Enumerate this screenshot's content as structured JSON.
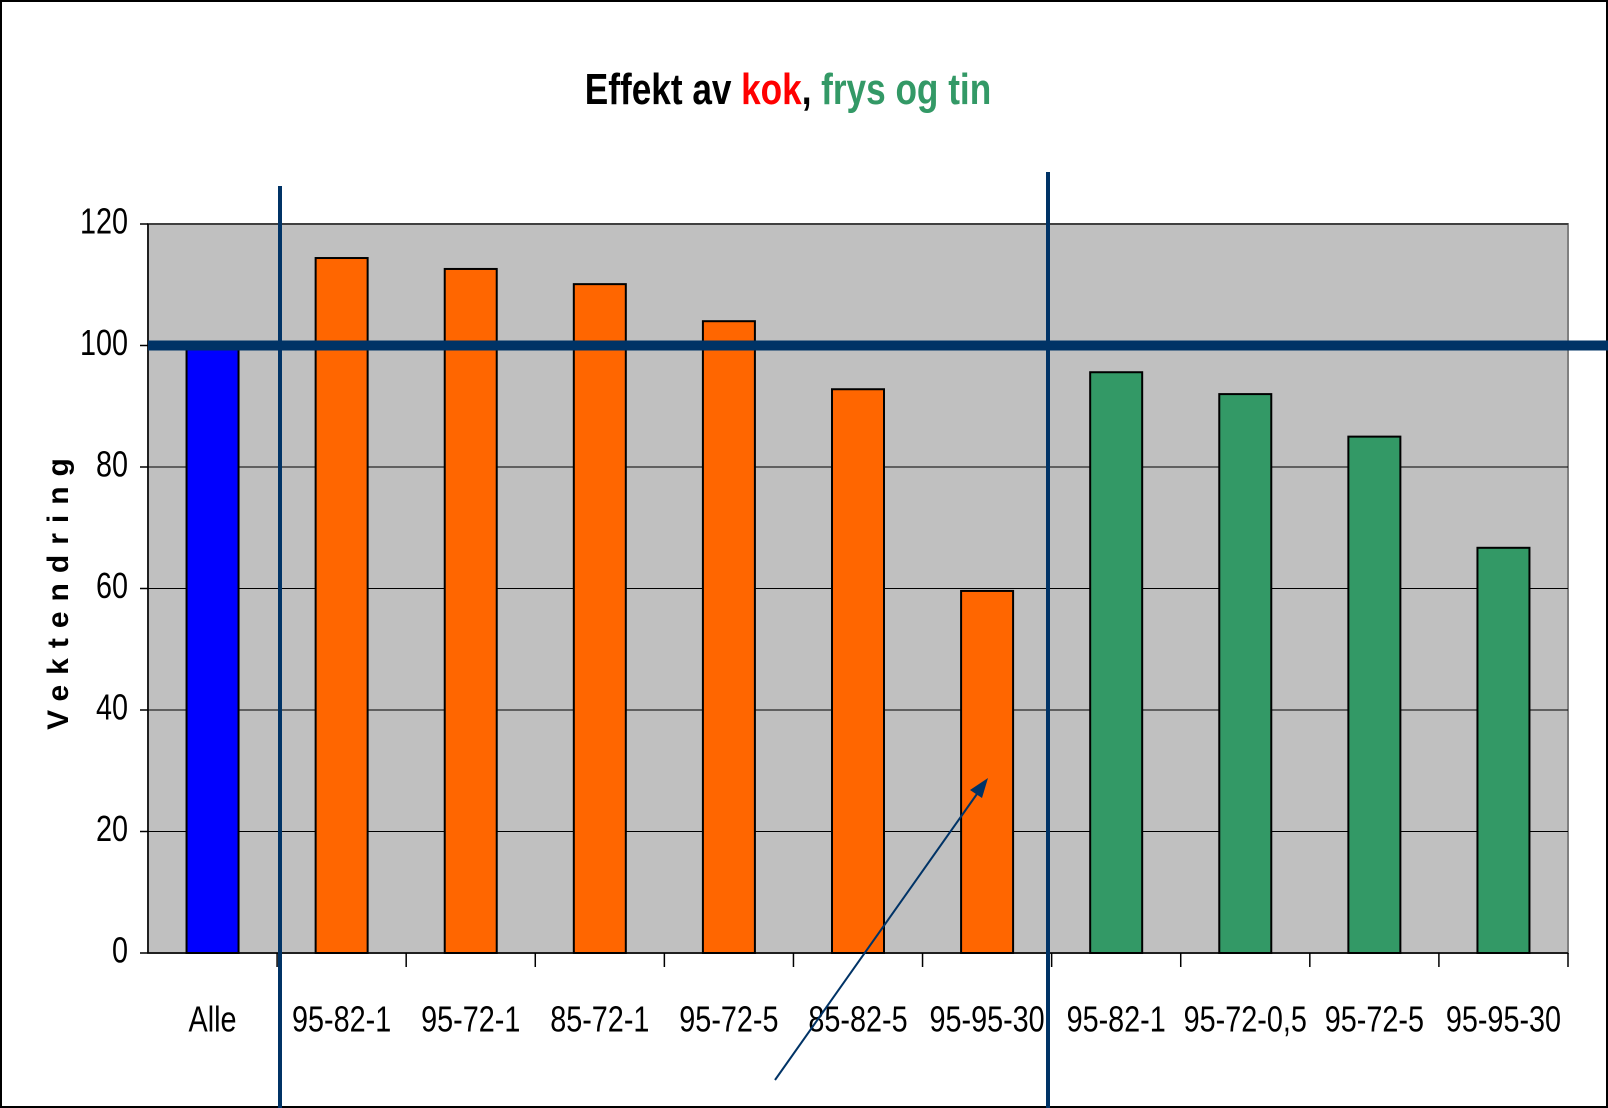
{
  "chart_data": {
    "type": "bar",
    "title_parts": [
      {
        "text": "Effekt av",
        "color": "#000000"
      },
      {
        "text": "kok",
        "color": "#ff0000"
      },
      {
        "text": ",",
        "color": "#000000"
      },
      {
        "text": "frys og tin",
        "color": "#339966"
      }
    ],
    "ylabel": "Vektendring",
    "categories": [
      "Alle",
      "95-82-1",
      "95-72-1",
      "85-72-1",
      "95-72-5",
      "85-82-5",
      "95-95-30",
      "95-82-1",
      "95-72-0,5",
      "95-72-5",
      "95-95-30"
    ],
    "values": [
      100,
      114.4,
      112.6,
      110.1,
      104,
      92.8,
      59.6,
      95.6,
      92,
      85,
      66.7
    ],
    "colors": [
      "#0000ff",
      "#ff6600",
      "#ff6600",
      "#ff6600",
      "#ff6600",
      "#ff6600",
      "#ff6600",
      "#339966",
      "#339966",
      "#339966",
      "#339966"
    ],
    "ylim": [
      0,
      120
    ],
    "yticks": [
      0,
      20,
      40,
      60,
      80,
      100,
      120
    ],
    "grid": true,
    "reference_line": 100
  }
}
